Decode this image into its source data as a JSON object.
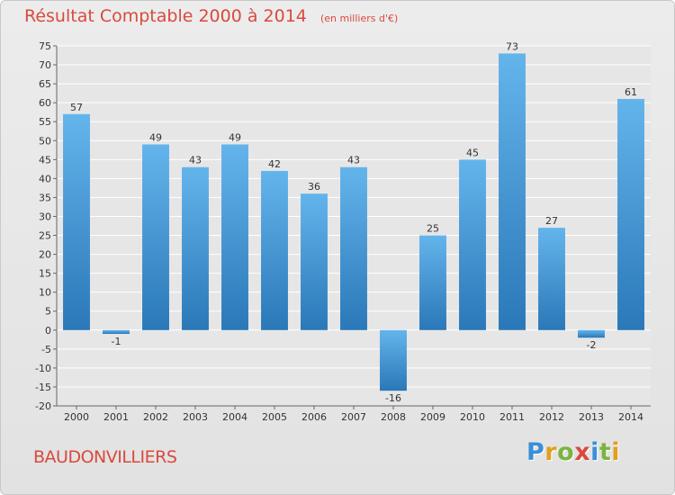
{
  "title": "Résultat Comptable 2000 à 2014",
  "unit_note": "(en milliers d'€)",
  "commune": "BAUDONVILLIERS",
  "logo": {
    "letters": [
      {
        "char": "P",
        "color": "#3a8fd6"
      },
      {
        "char": "r",
        "color": "#e0a020"
      },
      {
        "char": "o",
        "color": "#7cb342"
      },
      {
        "char": "x",
        "color": "#d94a3d"
      },
      {
        "char": "i",
        "color": "#3a8fd6"
      },
      {
        "char": "t",
        "color": "#7cb342"
      },
      {
        "char": "i",
        "color": "#e0a020"
      }
    ]
  },
  "colors": {
    "title": "#d94a3d",
    "bar_light": "#64b4ec",
    "bar_dark": "#2a78b8",
    "grid": "#ffffff",
    "axis_text": "#333333"
  },
  "chart_data": {
    "type": "bar",
    "title": "Résultat Comptable 2000 à 2014",
    "categories": [
      "2000",
      "2001",
      "2002",
      "2003",
      "2004",
      "2005",
      "2006",
      "2007",
      "2008",
      "2009",
      "2010",
      "2011",
      "2012",
      "2013",
      "2014"
    ],
    "values": [
      57,
      -1,
      49,
      43,
      49,
      42,
      36,
      43,
      -16,
      25,
      45,
      73,
      27,
      -2,
      61
    ],
    "ylim": [
      -20,
      75
    ],
    "yticks": [
      -20,
      -15,
      -10,
      -5,
      0,
      5,
      10,
      15,
      20,
      25,
      30,
      35,
      40,
      45,
      50,
      55,
      60,
      65,
      70,
      75
    ],
    "grid": true,
    "xlabel": "",
    "ylabel": ""
  }
}
